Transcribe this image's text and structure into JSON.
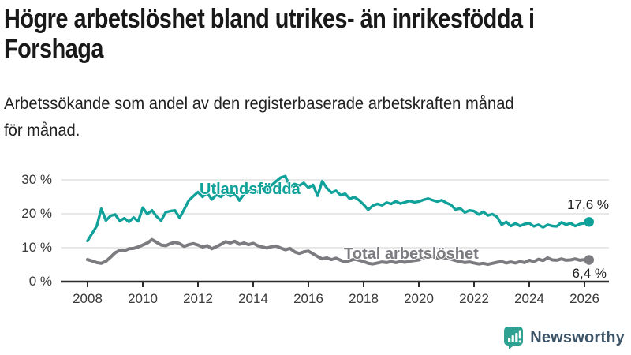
{
  "header": {
    "title_lines": [
      "Högre arbetslöshet bland utrikes- än inrikesfödda i",
      "Forshaga"
    ],
    "subtitle_lines": [
      "Arbetssökande som andel av den registerbaserade arbetskraften månad",
      "för månad."
    ]
  },
  "chart_data": {
    "type": "line",
    "title": "Högre arbetslöshet bland utrikes- än inrikesfödda i Forshaga",
    "subtitle": "Arbetssökande som andel av den registerbaserade arbetskraften månad för månad.",
    "x_start_year": 2008,
    "x_step_years": 0.166667,
    "x_ticks": [
      2008,
      2010,
      2012,
      2014,
      2016,
      2018,
      2020,
      2022,
      2024,
      2026
    ],
    "y_ticks": [
      {
        "value": 0,
        "label": "0 %"
      },
      {
        "value": 10,
        "label": "10 %"
      },
      {
        "value": 20,
        "label": "20 %"
      },
      {
        "value": 30,
        "label": "30 %"
      }
    ],
    "ylim": [
      0,
      34
    ],
    "xlim": [
      2007.9,
      2026.9
    ],
    "grid": "horizontal",
    "legend_position": "inline-labels",
    "series": [
      {
        "name": "Total arbetslöshet",
        "color": "#7b7b80",
        "end_label": "6,4 %",
        "end_value": 6.4,
        "values": [
          6.5,
          6.1,
          5.6,
          5.4,
          6.0,
          7.2,
          8.5,
          9.2,
          9.1,
          9.7,
          9.8,
          10.2,
          10.8,
          11.4,
          12.4,
          11.6,
          10.8,
          10.6,
          11.2,
          11.6,
          11.2,
          10.4,
          10.9,
          11.2,
          10.8,
          10.2,
          10.6,
          9.7,
          10.3,
          11.0,
          11.8,
          11.4,
          11.9,
          11.0,
          11.4,
          10.9,
          11.3,
          10.6,
          10.2,
          9.9,
          10.3,
          10.5,
          9.9,
          9.4,
          9.8,
          8.8,
          8.3,
          8.8,
          9.0,
          8.2,
          7.4,
          6.7,
          7.0,
          6.5,
          6.9,
          6.3,
          5.8,
          6.2,
          6.6,
          6.3,
          5.9,
          5.4,
          5.2,
          5.5,
          5.8,
          5.6,
          5.9,
          5.6,
          5.9,
          5.7,
          6.0,
          6.2,
          6.4,
          7.0,
          7.6,
          7.4,
          7.0,
          6.8,
          6.9,
          6.6,
          6.2,
          5.9,
          5.6,
          5.8,
          5.5,
          5.2,
          5.4,
          5.1,
          5.4,
          5.7,
          5.9,
          5.5,
          5.8,
          5.5,
          5.9,
          5.6,
          6.3,
          5.9,
          6.6,
          6.2,
          7.0,
          6.4,
          6.3,
          6.7,
          6.3,
          6.4,
          6.7,
          6.3,
          6.5,
          6.4
        ]
      },
      {
        "name": "Utlandsfödda",
        "color": "#10a29a",
        "end_label": "17,6 %",
        "end_value": 17.6,
        "values": [
          12.0,
          14.2,
          16.4,
          21.5,
          18.0,
          19.4,
          19.8,
          17.9,
          18.7,
          17.6,
          18.9,
          17.8,
          21.8,
          19.9,
          21.0,
          19.2,
          18.0,
          20.5,
          20.8,
          21.0,
          18.8,
          21.3,
          23.9,
          25.2,
          26.4,
          25.0,
          26.2,
          24.2,
          25.6,
          25.0,
          26.3,
          25.2,
          26.0,
          23.9,
          25.8,
          26.5,
          27.2,
          26.4,
          27.6,
          27.0,
          28.4,
          29.6,
          30.7,
          31.1,
          27.9,
          28.8,
          28.3,
          29.1,
          27.7,
          28.5,
          25.3,
          29.6,
          27.6,
          26.2,
          26.8,
          25.5,
          25.9,
          24.4,
          24.9,
          24.0,
          22.7,
          21.2,
          22.4,
          22.9,
          22.5,
          23.3,
          22.9,
          23.7,
          23.0,
          23.4,
          23.8,
          23.4,
          23.6,
          24.1,
          24.5,
          24.0,
          23.6,
          24.0,
          23.2,
          22.6,
          21.2,
          21.6,
          20.4,
          21.0,
          20.8,
          19.8,
          20.6,
          19.5,
          19.9,
          19.1,
          16.8,
          17.6,
          16.4,
          17.2,
          16.4,
          17.0,
          17.2,
          16.3,
          16.8,
          16.0,
          16.8,
          16.4,
          16.3,
          17.5,
          16.8,
          17.2,
          16.4,
          17.0,
          17.2,
          17.6
        ]
      }
    ]
  },
  "brand": {
    "name": "Newsworthy",
    "icon": "newsworthy-speech-bubble-bar-chart-icon",
    "icon_color": "#2fa192",
    "text_color": "#3e5568"
  }
}
